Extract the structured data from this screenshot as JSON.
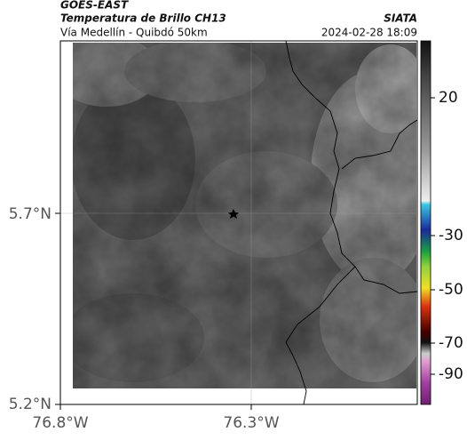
{
  "header": {
    "source": "GOES-EAST",
    "title": "Temperatura de Brillo CH13",
    "subtitle": "Vía Medellín - Quibdó 50km",
    "agency": "SIATA",
    "timestamp": "2024-02-28 18:09"
  },
  "axes": {
    "latitude_ticks": [
      "5.7°N",
      "5.2°N"
    ],
    "longitude_ticks": [
      "76.8°W",
      "76.3°W"
    ]
  },
  "colorbar": {
    "ticks": [
      20,
      -30,
      -50,
      -70,
      -90
    ]
  }
}
